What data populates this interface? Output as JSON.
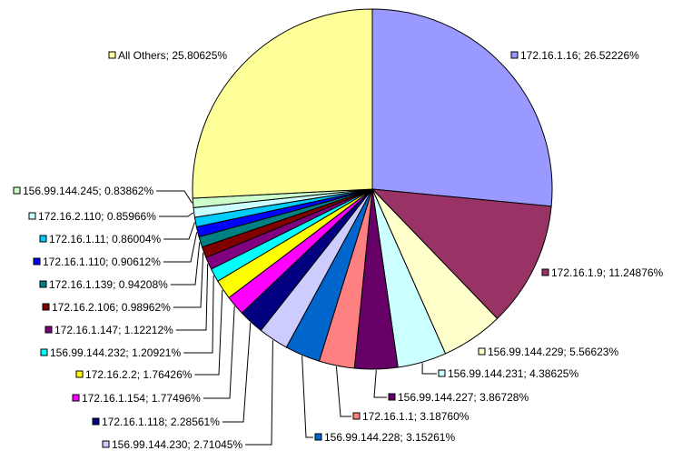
{
  "chart_data": {
    "type": "pie",
    "title": "",
    "start": "12 o'clock",
    "direction": "clockwise",
    "legend": "none (labels with leader lines)",
    "slices": [
      {
        "label": "172.16.1.16",
        "value": 26.52226,
        "text": "172.16.1.16; 26.52226%",
        "color": "#9999FF"
      },
      {
        "label": "172.16.1.9",
        "value": 11.24876,
        "text": "172.16.1.9; 11.24876%",
        "color": "#993366"
      },
      {
        "label": "156.99.144.229",
        "value": 5.56623,
        "text": "156.99.144.229; 5.56623%",
        "color": "#FFFFCC"
      },
      {
        "label": "156.99.144.231",
        "value": 4.38625,
        "text": "156.99.144.231; 4.38625%",
        "color": "#CCFFFF"
      },
      {
        "label": "156.99.144.227",
        "value": 3.86728,
        "text": "156.99.144.227; 3.86728%",
        "color": "#660066"
      },
      {
        "label": "172.16.1.1",
        "value": 3.1876,
        "text": "172.16.1.1; 3.18760%",
        "color": "#FF8080"
      },
      {
        "label": "156.99.144.228",
        "value": 3.15261,
        "text": "156.99.144.228; 3.15261%",
        "color": "#0066CC"
      },
      {
        "label": "156.99.144.230",
        "value": 2.71045,
        "text": "156.99.144.230; 2.71045%",
        "color": "#CCCCFF"
      },
      {
        "label": "172.16.1.118",
        "value": 2.28561,
        "text": "172.16.1.118; 2.28561%",
        "color": "#000080"
      },
      {
        "label": "172.16.1.154",
        "value": 1.77496,
        "text": "172.16.1.154; 1.77496%",
        "color": "#FF00FF"
      },
      {
        "label": "172.16.2.2",
        "value": 1.76426,
        "text": "172.16.2.2; 1.76426%",
        "color": "#FFFF00"
      },
      {
        "label": "156.99.144.232",
        "value": 1.20921,
        "text": "156.99.144.232; 1.20921%",
        "color": "#00FFFF"
      },
      {
        "label": "172.16.1.147",
        "value": 1.12212,
        "text": "172.16.1.147; 1.12212%",
        "color": "#800080"
      },
      {
        "label": "172.16.2.106",
        "value": 0.98962,
        "text": "172.16.2.106; 0.98962%",
        "color": "#800000"
      },
      {
        "label": "172.16.1.139",
        "value": 0.94208,
        "text": "172.16.1.139; 0.94208%",
        "color": "#008080"
      },
      {
        "label": "172.16.1.110",
        "value": 0.90612,
        "text": "172.16.1.110; 0.90612%",
        "color": "#0000FF"
      },
      {
        "label": "172.16.1.11",
        "value": 0.86004,
        "text": "172.16.1.11; 0.86004%",
        "color": "#00CCFF"
      },
      {
        "label": "172.16.2.110",
        "value": 0.85966,
        "text": "172.16.2.110; 0.85966%",
        "color": "#CCFFFF"
      },
      {
        "label": "156.99.144.245",
        "value": 0.83862,
        "text": "156.99.144.245; 0.83862%",
        "color": "#CCFFCC"
      },
      {
        "label": "All Others",
        "value": 25.80625,
        "text": "All Others; 25.80625%",
        "color": "#FFFF99"
      }
    ]
  }
}
